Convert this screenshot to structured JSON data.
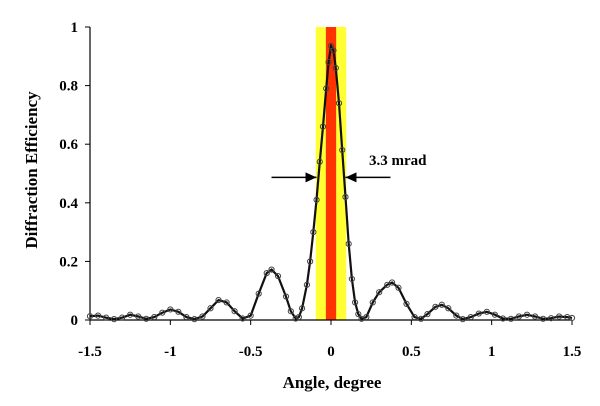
{
  "chart_data": {
    "type": "line",
    "title": "",
    "xlabel": "Angle, degree",
    "ylabel": "Diffraction Efficiency",
    "xlim": [
      -1.5,
      1.5
    ],
    "ylim": [
      0,
      1
    ],
    "xticks": [
      "-1.5",
      "-1",
      "-0.5",
      "0",
      "0.5",
      "1",
      "1.5"
    ],
    "yticks": [
      "0",
      "0.2",
      "0.4",
      "0.6",
      "0.8",
      "1"
    ],
    "grid": false,
    "legend": "none",
    "annotation": {
      "text": "3.3 mrad",
      "arrow_y": 0.48,
      "arrow_x_from": -0.09,
      "arrow_x_to": 0.09
    },
    "bands": [
      {
        "name": "yellow-band",
        "x_from": -0.095,
        "x_to": 0.095,
        "color": "#ffff33"
      },
      {
        "name": "red-band",
        "x_from": -0.032,
        "x_to": 0.032,
        "color": "#ff3300"
      }
    ],
    "series": [
      {
        "marker": "circle",
        "color": "#111111",
        "points": [
          [
            -1.5,
            0.013
          ],
          [
            -1.45,
            0.015
          ],
          [
            -1.4,
            0.008
          ],
          [
            -1.35,
            0.003
          ],
          [
            -1.3,
            0.008
          ],
          [
            -1.25,
            0.018
          ],
          [
            -1.2,
            0.012
          ],
          [
            -1.15,
            0.004
          ],
          [
            -1.1,
            0.01
          ],
          [
            -1.05,
            0.025
          ],
          [
            -1.0,
            0.036
          ],
          [
            -0.95,
            0.028
          ],
          [
            -0.9,
            0.01
          ],
          [
            -0.85,
            0.003
          ],
          [
            -0.8,
            0.012
          ],
          [
            -0.75,
            0.04
          ],
          [
            -0.7,
            0.068
          ],
          [
            -0.65,
            0.06
          ],
          [
            -0.6,
            0.03
          ],
          [
            -0.55,
            0.005
          ],
          [
            -0.5,
            0.015
          ],
          [
            -0.45,
            0.09
          ],
          [
            -0.4,
            0.16
          ],
          [
            -0.37,
            0.172
          ],
          [
            -0.33,
            0.15
          ],
          [
            -0.28,
            0.08
          ],
          [
            -0.25,
            0.03
          ],
          [
            -0.22,
            0.005
          ],
          [
            -0.2,
            0.01
          ],
          [
            -0.18,
            0.04
          ],
          [
            -0.15,
            0.12
          ],
          [
            -0.13,
            0.2
          ],
          [
            -0.11,
            0.3
          ],
          [
            -0.09,
            0.41
          ],
          [
            -0.07,
            0.54
          ],
          [
            -0.05,
            0.66
          ],
          [
            -0.03,
            0.79
          ],
          [
            -0.015,
            0.88
          ],
          [
            0.0,
            0.935
          ],
          [
            0.015,
            0.92
          ],
          [
            0.03,
            0.86
          ],
          [
            0.05,
            0.74
          ],
          [
            0.07,
            0.58
          ],
          [
            0.09,
            0.42
          ],
          [
            0.11,
            0.26
          ],
          [
            0.13,
            0.14
          ],
          [
            0.15,
            0.06
          ],
          [
            0.17,
            0.02
          ],
          [
            0.19,
            0.004
          ],
          [
            0.22,
            0.01
          ],
          [
            0.26,
            0.06
          ],
          [
            0.3,
            0.095
          ],
          [
            0.35,
            0.12
          ],
          [
            0.38,
            0.128
          ],
          [
            0.42,
            0.11
          ],
          [
            0.47,
            0.055
          ],
          [
            0.52,
            0.01
          ],
          [
            0.56,
            0.004
          ],
          [
            0.6,
            0.02
          ],
          [
            0.65,
            0.045
          ],
          [
            0.69,
            0.052
          ],
          [
            0.73,
            0.04
          ],
          [
            0.78,
            0.015
          ],
          [
            0.82,
            0.003
          ],
          [
            0.87,
            0.01
          ],
          [
            0.92,
            0.022
          ],
          [
            0.97,
            0.028
          ],
          [
            1.02,
            0.018
          ],
          [
            1.07,
            0.005
          ],
          [
            1.12,
            0.004
          ],
          [
            1.17,
            0.012
          ],
          [
            1.22,
            0.018
          ],
          [
            1.27,
            0.012
          ],
          [
            1.32,
            0.004
          ],
          [
            1.37,
            0.006
          ],
          [
            1.42,
            0.012
          ],
          [
            1.47,
            0.01
          ],
          [
            1.5,
            0.007
          ]
        ]
      }
    ]
  }
}
